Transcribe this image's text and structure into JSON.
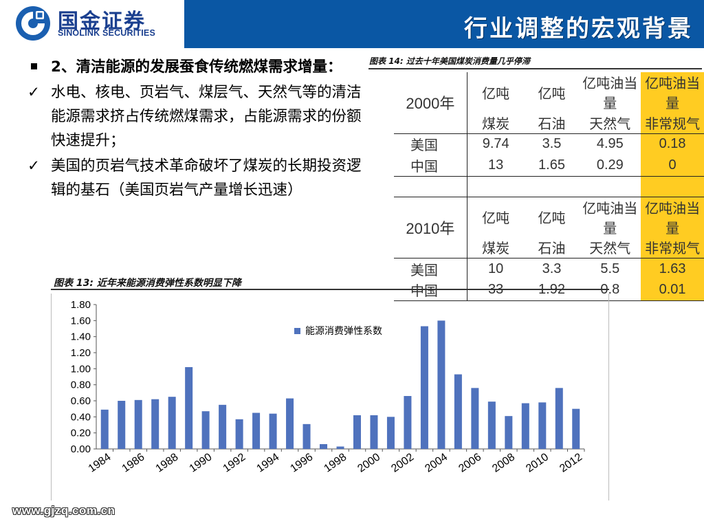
{
  "header": {
    "logo_cn": "国金证券",
    "logo_en": "SINOLINK SECURITIES",
    "title": "行业调整的宏观背景",
    "brand_color": "#0a57a4"
  },
  "bullets": [
    {
      "type": "square",
      "text": "2、清洁能源的发展蚕食传统燃煤需求增量："
    },
    {
      "type": "check",
      "text": "水电、核电、页岩气、煤层气、天然气等的清洁能源需求挤占传统燃煤需求，占能源需求的份额快速提升；"
    },
    {
      "type": "check",
      "text": "美国的页岩气技术革命破坏了煤炭的长期投资逻辑的基石（美国页岩气产量增长迅速）"
    }
  ],
  "table": {
    "caption": "图表 14:  过去十年美国煤炭消费量几乎停滞",
    "highlight_color": "#ffcc22",
    "blocks": [
      {
        "year": "2000年",
        "headers": [
          [
            "亿吨",
            "煤炭"
          ],
          [
            "亿吨",
            "石油"
          ],
          [
            "亿吨油当量",
            "天然气"
          ],
          [
            "亿吨油当量",
            "非常规气"
          ]
        ],
        "rows": [
          {
            "country": "美国",
            "values": [
              "9.74",
              "3.5",
              "4.95",
              "0.18"
            ]
          },
          {
            "country": "中国",
            "values": [
              "13",
              "1.65",
              "0.29",
              "0"
            ]
          }
        ]
      },
      {
        "year": "2010年",
        "headers": [
          [
            "亿吨",
            "煤炭"
          ],
          [
            "亿吨",
            "石油"
          ],
          [
            "亿吨油当量",
            "天然气"
          ],
          [
            "亿吨油当量",
            "非常规气"
          ]
        ],
        "rows": [
          {
            "country": "美国",
            "values": [
              "10",
              "3.3",
              "5.5",
              "1.63"
            ]
          },
          {
            "country": "中国",
            "values": [
              "33",
              "1.92",
              "0.8",
              "0.01"
            ]
          }
        ]
      }
    ]
  },
  "chart": {
    "caption": "图表 13:  近年来能源消费弹性系数明显下降"
  },
  "chart_data": {
    "type": "bar",
    "legend": "top-right",
    "grid": false,
    "bar_color": "#4f72bd",
    "ylim": [
      0,
      1.8
    ],
    "yticks": [
      "0.00",
      "0.20",
      "0.40",
      "0.60",
      "0.80",
      "1.00",
      "1.20",
      "1.40",
      "1.60",
      "1.80"
    ],
    "categories": [
      "1984",
      "1985",
      "1986",
      "1987",
      "1988",
      "1989",
      "1990",
      "1991",
      "1992",
      "1993",
      "1994",
      "1995",
      "1996",
      "1997",
      "1998",
      "1999",
      "2000",
      "2001",
      "2002",
      "2003",
      "2004",
      "2005",
      "2006",
      "2007",
      "2008",
      "2009",
      "2010",
      "2011",
      "2012"
    ],
    "xtick_labels": [
      "1984",
      "1986",
      "1988",
      "1990",
      "1992",
      "1994",
      "1996",
      "1998",
      "2000",
      "2002",
      "2004",
      "2006",
      "2008",
      "2010",
      "2012"
    ],
    "series": [
      {
        "name": "能源消费弹性系数",
        "values": [
          0.49,
          0.6,
          0.61,
          0.62,
          0.65,
          1.02,
          0.47,
          0.55,
          0.37,
          0.45,
          0.44,
          0.63,
          0.31,
          0.06,
          0.03,
          0.42,
          0.42,
          0.4,
          0.66,
          1.53,
          1.6,
          0.93,
          0.76,
          0.59,
          0.41,
          0.57,
          0.58,
          0.76,
          0.5
        ]
      }
    ]
  },
  "footer": {
    "url": "www.gjzq.com.cn"
  }
}
